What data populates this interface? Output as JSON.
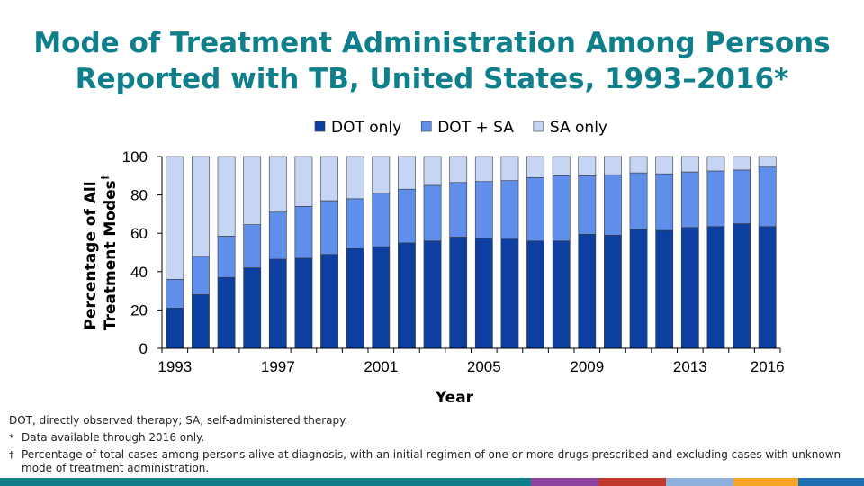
{
  "title_lines": [
    "Mode of Treatment Administration Among Persons",
    "Reported with TB, United States, 1993–2016*"
  ],
  "chart_data": {
    "type": "bar",
    "stacked": true,
    "categories": [
      "1993",
      "1994",
      "1995",
      "1996",
      "1997",
      "1998",
      "1999",
      "2000",
      "2001",
      "2002",
      "2003",
      "2004",
      "2005",
      "2006",
      "2007",
      "2008",
      "2009",
      "2010",
      "2011",
      "2012",
      "2013",
      "2014",
      "2015",
      "2016"
    ],
    "x_tick_labels": [
      "1993",
      "1997",
      "2001",
      "2005",
      "2009",
      "2013",
      "2016"
    ],
    "series": [
      {
        "name": "DOT only",
        "color": "#0d3fa0",
        "values": [
          21,
          28,
          37,
          42,
          46.5,
          47,
          49,
          52,
          53,
          55,
          56,
          58,
          57.5,
          57,
          56,
          56,
          59.5,
          59,
          62,
          61.5,
          63,
          63.5,
          65,
          63.5
        ]
      },
      {
        "name": "DOT + SA",
        "color": "#5f8fea",
        "values": [
          15,
          20,
          21.5,
          22.5,
          24.5,
          27,
          28,
          26,
          28,
          28,
          29,
          28.5,
          29.5,
          30.5,
          33,
          34,
          30.5,
          31.5,
          29.5,
          29.5,
          29,
          29,
          28,
          31
        ]
      },
      {
        "name": "SA only",
        "color": "#c6d5f3",
        "values": [
          64,
          52,
          41.5,
          35.5,
          29,
          26,
          23,
          22,
          19,
          17,
          15,
          13.5,
          13,
          12.5,
          11,
          10,
          10,
          9.5,
          8.5,
          9,
          8,
          7.5,
          7,
          5.5
        ]
      }
    ],
    "ylabel_line1": "Percentage of All",
    "ylabel_line2": "Treatment Modes",
    "ylabel_mark": "†",
    "xlabel": "Year",
    "yticks": [
      0,
      20,
      40,
      60,
      80,
      100
    ],
    "ylim": [
      0,
      100
    ],
    "legend_position": "top"
  },
  "footnotes": {
    "abbrev": "DOT, directly observed therapy; SA, self-administered therapy.",
    "star_mark": "*",
    "star": "Data available through 2016 only.",
    "dagger_mark": "†",
    "dagger": "Percentage of total cases among persons alive at diagnosis, with an initial regimen of one or more drugs prescribed and excluding cases with unknown mode of treatment administration."
  },
  "bottom_bar_colors": [
    "#0f7f8c",
    "#8e44a0",
    "#c0392b",
    "#8fb0dc",
    "#f5a623",
    "#1f6fb5"
  ]
}
